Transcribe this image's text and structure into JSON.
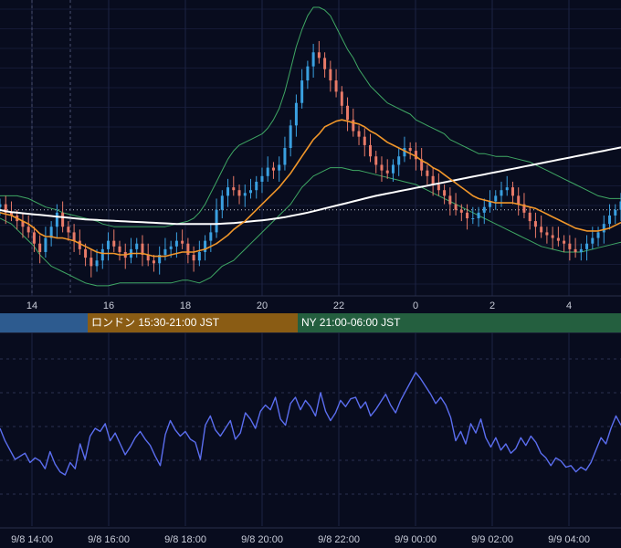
{
  "chart_data": [
    {
      "type": "candlestick",
      "title": "",
      "xlabel": "",
      "ylabel": "",
      "x_tick_labels": [
        "14",
        "16",
        "18",
        "20",
        "22",
        "0",
        "2",
        "4"
      ],
      "price_range": [
        0,
        100
      ],
      "grid": true,
      "reference_line": 28,
      "series": [
        {
          "kind": "close",
          "color": "#3aa0e0",
          "values": [
            30,
            27,
            26,
            24,
            22,
            20,
            16,
            13,
            18,
            22,
            27,
            22,
            20,
            17,
            14,
            11,
            8,
            10,
            14,
            17,
            15,
            13,
            11,
            14,
            16,
            12,
            10,
            9,
            12,
            14,
            15,
            17,
            16,
            12,
            10,
            13,
            17,
            20,
            28,
            33,
            36,
            35,
            33,
            34,
            35,
            38,
            40,
            43,
            42,
            44,
            50,
            58,
            66,
            74,
            79,
            84,
            82,
            78,
            74,
            70,
            65,
            60,
            56,
            54,
            51,
            47,
            44,
            42,
            41,
            44,
            47,
            50,
            49,
            46,
            42,
            40,
            37,
            35,
            33,
            30,
            28,
            27,
            25,
            25,
            27,
            29,
            31,
            33,
            35,
            36,
            33,
            30,
            27,
            24,
            22,
            20,
            19,
            18,
            17,
            16,
            14,
            13,
            14,
            16,
            18,
            20,
            23,
            26,
            28,
            31
          ]
        },
        {
          "kind": "moving-average-short",
          "color": "#f0962a",
          "values": [
            27,
            26.5,
            26,
            25,
            24,
            23,
            21.5,
            19.5,
            18.5,
            18.5,
            18,
            18,
            17.5,
            17,
            16,
            15,
            14,
            13,
            12.5,
            12.5,
            12.5,
            12,
            12,
            12.5,
            12.5,
            12.5,
            12,
            11.5,
            11.5,
            11.5,
            12,
            12.5,
            13,
            13,
            13,
            13.5,
            14,
            15,
            16,
            17.5,
            19,
            21,
            22.5,
            24,
            26,
            28,
            30,
            32,
            34,
            36,
            38.5,
            41,
            44,
            47,
            50,
            53,
            55,
            57.5,
            58.5,
            59.5,
            60,
            59.5,
            59,
            58.5,
            57.5,
            56,
            55,
            53.5,
            52,
            51,
            50,
            49,
            48,
            47,
            45.5,
            44.5,
            43,
            42,
            40.5,
            39,
            37.5,
            36,
            34.5,
            33,
            32,
            31.5,
            31,
            30.5,
            30.5,
            30.5,
            30.5,
            30,
            29.5,
            29,
            28.5,
            27.5,
            26.5,
            25.5,
            24.5,
            23.5,
            22.5,
            21.5,
            21,
            20.5,
            20.5,
            20.5,
            21,
            21.5,
            22.5,
            23.5
          ]
        },
        {
          "kind": "moving-average-long",
          "color": "#ffffff",
          "values": [
            28,
            27.5,
            27.2,
            27,
            26.8,
            26.6,
            26.4,
            26.2,
            26,
            25.8,
            25.6,
            25.4,
            25.2,
            25,
            24.8,
            24.6,
            24.5,
            24.4,
            24.3,
            24.2,
            24.1,
            24,
            23.9,
            23.8,
            23.7,
            23.6,
            23.5,
            23.4,
            23.3,
            23.2,
            23.1,
            23,
            23,
            23,
            23,
            23,
            23,
            23,
            23,
            23.1,
            23.2,
            23.3,
            23.5,
            23.7,
            23.9,
            24.1,
            24.3,
            24.5,
            24.8,
            25.1,
            25.4,
            25.8,
            26.2,
            26.6,
            27,
            27.5,
            28,
            28.5,
            29,
            29.5,
            30,
            30.5,
            31,
            31.5,
            32,
            32.5,
            33,
            33.4,
            33.8,
            34.2,
            34.6,
            35,
            35.4,
            35.8,
            36.2,
            36.6,
            37,
            37.4,
            37.8,
            38.2,
            38.6,
            39,
            39.4,
            39.8,
            40.2,
            40.6,
            41,
            41.4,
            41.8,
            42.2,
            42.6,
            43,
            43.4,
            43.8,
            44.2,
            44.6,
            45,
            45.4,
            45.8,
            46.2,
            46.6,
            47,
            47.4,
            47.8,
            48.2,
            48.6,
            49,
            49.4,
            49.8,
            50.2
          ]
        },
        {
          "kind": "band-upper",
          "color": "#3fa864",
          "values": [
            33,
            33,
            33,
            33,
            32.5,
            32,
            31,
            30,
            29,
            28.5,
            28,
            27,
            26.5,
            26,
            25.5,
            25,
            24.5,
            24,
            23,
            22.5,
            22,
            22,
            22,
            22,
            22,
            22,
            22,
            22,
            22,
            22,
            22.5,
            23,
            23.5,
            24,
            25,
            27,
            30,
            34,
            38,
            42,
            46,
            49,
            51,
            52,
            53,
            54,
            55,
            57,
            60,
            64,
            70,
            78,
            86,
            92,
            97,
            100,
            100,
            99,
            97,
            93,
            89,
            85,
            82,
            78,
            75,
            72,
            70,
            68,
            66,
            65,
            64,
            63,
            62,
            60,
            59,
            58,
            57,
            56,
            55,
            53,
            52,
            51,
            50,
            49,
            48,
            48,
            47.5,
            47,
            47,
            47,
            46.5,
            46,
            45.5,
            45,
            44,
            43,
            42,
            41,
            40,
            39,
            38,
            37,
            36,
            35,
            34,
            33,
            32.5,
            32,
            32,
            32
          ]
        },
        {
          "kind": "band-lower",
          "color": "#3fa864",
          "values": [
            25,
            24,
            23,
            21,
            19,
            17,
            15,
            12,
            10,
            8,
            7,
            6,
            5,
            4,
            3,
            2,
            1.5,
            1,
            1,
            1,
            1.5,
            2,
            2,
            2,
            2,
            2,
            2,
            2,
            2,
            2,
            2,
            2.5,
            3,
            3,
            2.5,
            2,
            3,
            4,
            6,
            8,
            9,
            10,
            12,
            14,
            16,
            18,
            20,
            22,
            24,
            26,
            28,
            30,
            33,
            36,
            38,
            40,
            41,
            42,
            43,
            43,
            43,
            42.5,
            42,
            42,
            41.5,
            41,
            40.5,
            40,
            39.5,
            39,
            38.5,
            38,
            37.5,
            37,
            36,
            35,
            34,
            33,
            32,
            31,
            30,
            29,
            28,
            27,
            26,
            25,
            24,
            23,
            22,
            21,
            20,
            19,
            18,
            17,
            16,
            15,
            14.5,
            14,
            13.5,
            13,
            13,
            13,
            13,
            13.5,
            14,
            14.5,
            15,
            15.5,
            16,
            16.5
          ]
        }
      ]
    },
    {
      "type": "line",
      "title": "",
      "x_tick_labels": [
        "9/8 14:00",
        "9/8 16:00",
        "9/8 18:00",
        "9/8 20:00",
        "9/8 22:00",
        "9/9 00:00",
        "9/9 02:00",
        "9/9 04:00"
      ],
      "y_range": [
        0,
        100
      ],
      "grid": true,
      "series": [
        {
          "color": "#5b6ef0",
          "values": [
            50,
            42,
            36,
            30,
            32,
            34,
            28,
            31,
            29,
            24,
            35,
            27,
            22,
            20,
            28,
            24,
            40,
            30,
            45,
            50,
            48,
            53,
            42,
            47,
            40,
            33,
            38,
            44,
            48,
            43,
            39,
            32,
            26,
            46,
            55,
            49,
            45,
            48,
            43,
            41,
            30,
            52,
            58,
            49,
            45,
            50,
            55,
            43,
            47,
            60,
            56,
            50,
            61,
            65,
            62,
            70,
            56,
            52,
            66,
            70,
            62,
            68,
            64,
            58,
            73,
            61,
            55,
            60,
            68,
            64,
            69,
            70,
            63,
            67,
            58,
            62,
            67,
            72,
            65,
            60,
            68,
            74,
            80,
            86,
            82,
            77,
            72,
            66,
            70,
            65,
            57,
            42,
            48,
            40,
            53,
            47,
            56,
            44,
            38,
            44,
            36,
            40,
            34,
            37,
            44,
            39,
            45,
            41,
            34,
            31,
            26,
            31,
            29,
            25,
            26,
            22,
            25,
            23,
            28,
            36,
            44,
            40,
            50,
            58,
            52
          ]
        }
      ]
    }
  ],
  "sessions": [
    {
      "label": "",
      "color": "#2d5b8f"
    },
    {
      "label": "ロンドン 15:30-21:00 JST",
      "color": "#8a5c14"
    },
    {
      "label": "NY 21:00-06:00 JST",
      "color": "#245f3f"
    }
  ]
}
